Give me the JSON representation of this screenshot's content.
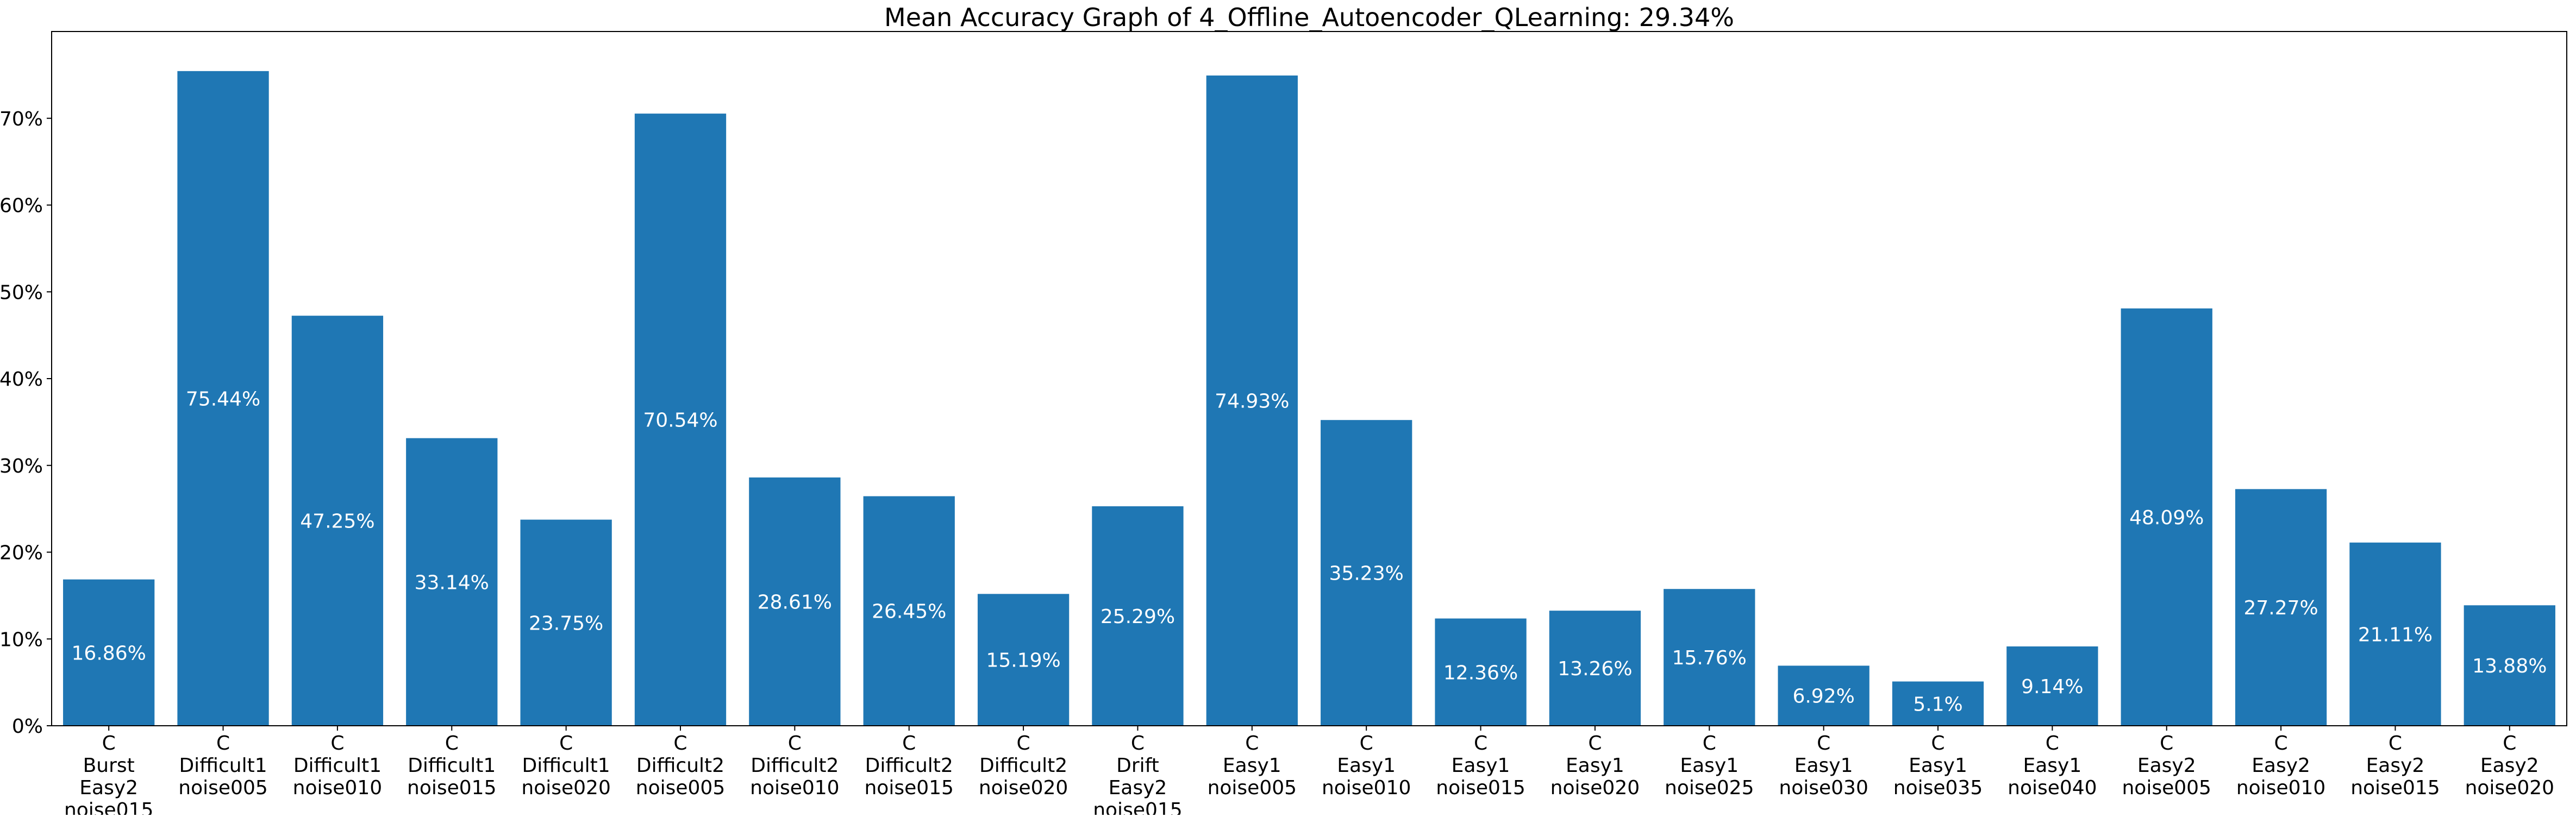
{
  "chart_data": {
    "type": "bar",
    "title": "Mean Accuracy Graph of 4_Offline_Autoencoder_QLearning: 29.34%",
    "xlabel": "",
    "ylabel": "",
    "ylim": [
      0,
      80
    ],
    "yticks": [
      0,
      10,
      20,
      30,
      40,
      50,
      60,
      70
    ],
    "ytick_labels": [
      "0%",
      "10%",
      "20%",
      "30%",
      "40%",
      "50%",
      "60%",
      "70%"
    ],
    "grid": false,
    "bar_color": "#1f77b4",
    "categories": [
      [
        "C",
        "Burst",
        "Easy2",
        "noise015"
      ],
      [
        "C",
        "Difficult1",
        "noise005"
      ],
      [
        "C",
        "Difficult1",
        "noise010"
      ],
      [
        "C",
        "Difficult1",
        "noise015"
      ],
      [
        "C",
        "Difficult1",
        "noise020"
      ],
      [
        "C",
        "Difficult2",
        "noise005"
      ],
      [
        "C",
        "Difficult2",
        "noise010"
      ],
      [
        "C",
        "Difficult2",
        "noise015"
      ],
      [
        "C",
        "Difficult2",
        "noise020"
      ],
      [
        "C",
        "Drift",
        "Easy2",
        "noise015"
      ],
      [
        "C",
        "Easy1",
        "noise005"
      ],
      [
        "C",
        "Easy1",
        "noise010"
      ],
      [
        "C",
        "Easy1",
        "noise015"
      ],
      [
        "C",
        "Easy1",
        "noise020"
      ],
      [
        "C",
        "Easy1",
        "noise025"
      ],
      [
        "C",
        "Easy1",
        "noise030"
      ],
      [
        "C",
        "Easy1",
        "noise035"
      ],
      [
        "C",
        "Easy1",
        "noise040"
      ],
      [
        "C",
        "Easy2",
        "noise005"
      ],
      [
        "C",
        "Easy2",
        "noise010"
      ],
      [
        "C",
        "Easy2",
        "noise015"
      ],
      [
        "C",
        "Easy2",
        "noise020"
      ]
    ],
    "values": [
      16.86,
      75.44,
      47.25,
      33.14,
      23.75,
      70.54,
      28.61,
      26.45,
      15.19,
      25.29,
      74.93,
      35.23,
      12.36,
      13.26,
      15.76,
      6.92,
      5.1,
      9.14,
      48.09,
      27.27,
      21.11,
      13.88
    ],
    "value_labels": [
      "16.86%",
      "75.44%",
      "47.25%",
      "33.14%",
      "23.75%",
      "70.54%",
      "28.61%",
      "26.45%",
      "15.19%",
      "25.29%",
      "74.93%",
      "35.23%",
      "12.36%",
      "13.26%",
      "15.76%",
      "6.92%",
      "5.1%",
      "9.14%",
      "48.09%",
      "27.27%",
      "21.11%",
      "13.88%"
    ]
  }
}
